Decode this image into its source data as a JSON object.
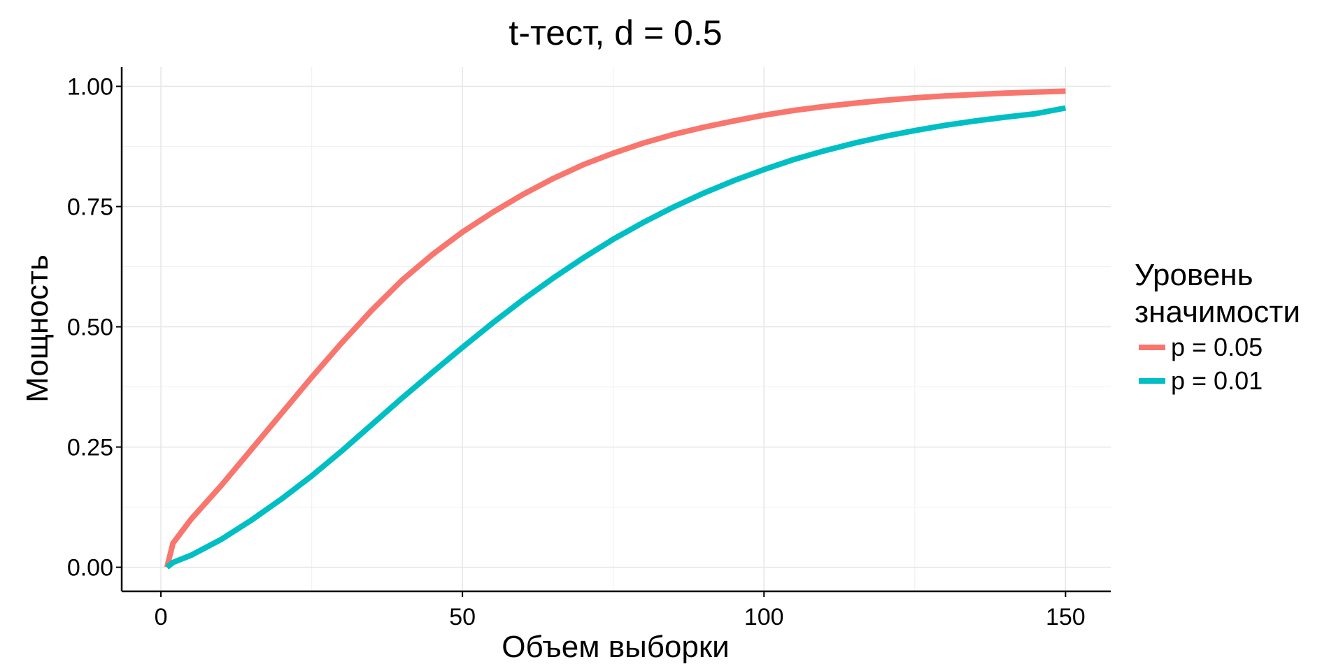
{
  "chart_data": {
    "type": "line",
    "title": "t-тест, d = 0.5",
    "xlabel": "Объем выборки",
    "ylabel": "Мощность",
    "xlim": [
      -6.5,
      157.5
    ],
    "ylim": [
      -0.05,
      1.04
    ],
    "xticks": [
      0,
      50,
      100,
      150
    ],
    "xtick_labels": [
      "0",
      "50",
      "100",
      "150"
    ],
    "yticks": [
      0,
      0.25,
      0.5,
      0.75,
      1.0
    ],
    "ytick_labels": [
      "0.00",
      "0.25",
      "0.50",
      "0.75",
      "1.00"
    ],
    "grid": true,
    "legend": {
      "title_lines": [
        "Уровень",
        "значимости"
      ],
      "position": "right"
    },
    "series": [
      {
        "name": "p = 0.05",
        "color": "#F8766D",
        "x": [
          1,
          2,
          5,
          10,
          15,
          20,
          25,
          30,
          35,
          40,
          45,
          50,
          55,
          60,
          65,
          70,
          75,
          80,
          85,
          90,
          95,
          100,
          105,
          110,
          115,
          120,
          125,
          130,
          135,
          140,
          145,
          150
        ],
        "y": [
          0.0,
          0.05,
          0.1,
          0.17,
          0.245,
          0.32,
          0.395,
          0.467,
          0.535,
          0.597,
          0.65,
          0.697,
          0.738,
          0.775,
          0.808,
          0.837,
          0.861,
          0.882,
          0.9,
          0.915,
          0.928,
          0.94,
          0.95,
          0.958,
          0.965,
          0.971,
          0.976,
          0.98,
          0.983,
          0.986,
          0.988,
          0.99
        ]
      },
      {
        "name": "p = 0.01",
        "color": "#00BFC4",
        "x": [
          1,
          2,
          5,
          10,
          15,
          20,
          25,
          30,
          35,
          40,
          45,
          50,
          55,
          60,
          65,
          70,
          75,
          80,
          85,
          90,
          95,
          100,
          105,
          110,
          115,
          120,
          125,
          130,
          135,
          140,
          145,
          150
        ],
        "y": [
          0.0,
          0.01,
          0.025,
          0.058,
          0.098,
          0.142,
          0.19,
          0.242,
          0.297,
          0.352,
          0.405,
          0.457,
          0.508,
          0.556,
          0.601,
          0.643,
          0.682,
          0.717,
          0.749,
          0.778,
          0.804,
          0.827,
          0.848,
          0.866,
          0.882,
          0.896,
          0.908,
          0.919,
          0.928,
          0.936,
          0.943,
          0.955
        ]
      }
    ]
  }
}
